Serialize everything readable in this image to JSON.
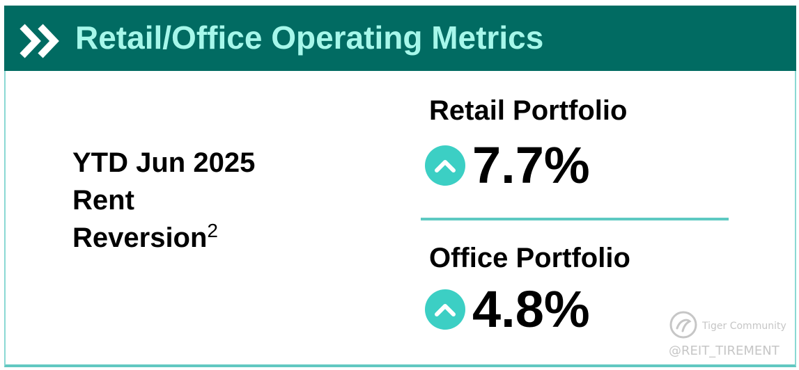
{
  "header": {
    "title": "Retail/Office Operating Metrics",
    "icon": "double-chevron-right-icon",
    "background_color": "#016b62",
    "title_color": "#a6f7ea"
  },
  "left": {
    "line1": "YTD Jun 2025",
    "line2": "Rent",
    "line3": "Reversion",
    "footnote": "2"
  },
  "metrics": [
    {
      "label": "Retail Portfolio",
      "value": "7.7%",
      "trend_icon": "chevron-up-icon"
    },
    {
      "label": "Office Portfolio",
      "value": "4.8%",
      "trend_icon": "chevron-up-icon"
    }
  ],
  "accent_color": "#3ccfc4",
  "watermark": {
    "brand": "Tiger Community",
    "handle": "@REIT_TIREMENT",
    "icon": "tiger-logo-icon"
  }
}
